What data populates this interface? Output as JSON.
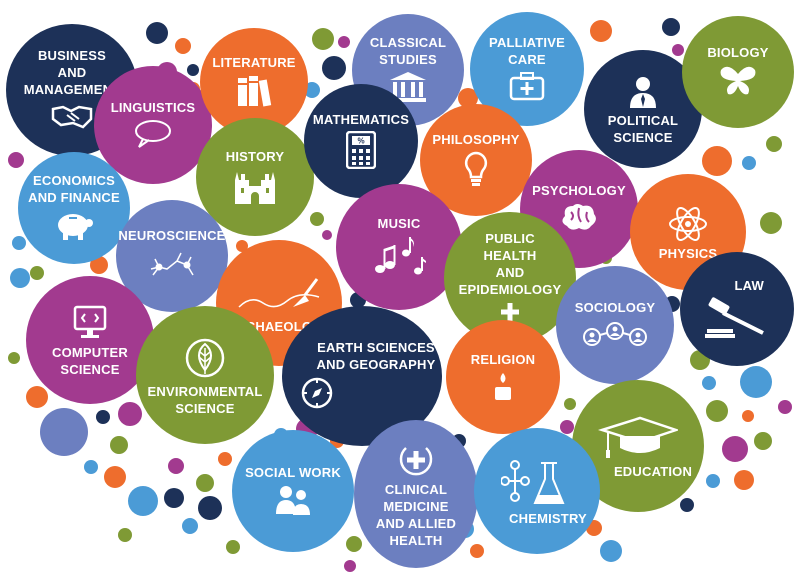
{
  "palette": {
    "navy": "#1d3158",
    "purple": "#a23a8f",
    "orange": "#ee6d2d",
    "green": "#7f9a35",
    "blue": "#4b9bd6",
    "periwinkle": "#6c7fc0"
  },
  "subjects": {
    "business": "BUSINESS\nAND\nMANAGEMENT",
    "linguistics": "LINGUISTICS",
    "literature": "LITERATURE",
    "classical": "CLASSICAL\nSTUDIES",
    "palliative": "PALLIATIVE\nCARE",
    "political": "POLITICAL\nSCIENCE",
    "biology": "BIOLOGY",
    "economics": "ECONOMICS\nAND FINANCE",
    "history": "HISTORY",
    "mathematics": "MATHEMATICS",
    "philosophy": "PHILOSOPHY",
    "psychology": "PSYCHOLOGY",
    "physics": "PHYSICS",
    "neuroscience": "NEUROSCIENCE",
    "music": "MUSIC",
    "public_health": "PUBLIC\nHEALTH\nAND\nEPIDEMIOLOGY",
    "archaeology": "ARCHAEOLOGY",
    "sociology": "SOCIOLOGY",
    "law": "LAW",
    "computer": "COMPUTER\nSCIENCE",
    "environmental": "ENVIRONMENTAL\nSCIENCE",
    "earth": "EARTH SCIENCES\nAND GEOGRAPHY",
    "religion": "RELIGION",
    "education": "EDUCATION",
    "social_work": "SOCIAL WORK",
    "clinical": "CLINICAL\nMEDICINE\nAND ALLIED\nHEALTH",
    "chemistry": "CHEMISTRY"
  },
  "icons": {
    "business": "handshake-icon",
    "linguistics": "speech-bubble-icon",
    "literature": "books-icon",
    "classical": "temple-icon",
    "palliative": "medical-kit-icon",
    "political": "politician-icon",
    "biology": "butterfly-icon",
    "economics": "piggy-bank-icon",
    "history": "castle-icon",
    "mathematics": "calculator-icon",
    "philosophy": "lightbulb-icon",
    "psychology": "brain-icon",
    "physics": "atom-icon",
    "neuroscience": "neuron-icon",
    "music": "music-notes-icon",
    "public_health": "plus-icon",
    "archaeology": "trowel-icon",
    "sociology": "people-network-icon",
    "law": "gavel-icon",
    "computer": "computer-icon",
    "environmental": "leaf-icon",
    "earth": "compass-icon",
    "religion": "candle-icon",
    "education": "graduation-cap-icon",
    "social_work": "people-icon",
    "clinical": "medical-cross-icon",
    "chemistry": "flask-molecule-icon"
  }
}
